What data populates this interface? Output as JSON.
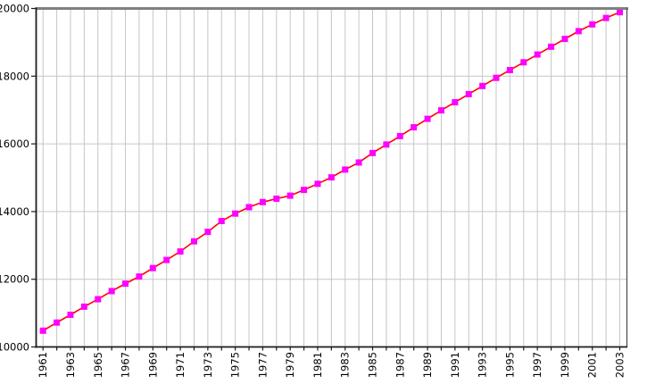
{
  "chart_data": {
    "type": "line",
    "title": "",
    "legend": "none",
    "grid": {
      "vertical": "every year",
      "horizontal": "every 2000 units"
    },
    "x": [
      1961,
      1962,
      1963,
      1964,
      1965,
      1966,
      1967,
      1968,
      1969,
      1970,
      1971,
      1972,
      1973,
      1974,
      1975,
      1976,
      1977,
      1978,
      1979,
      1980,
      1981,
      1982,
      1983,
      1984,
      1985,
      1986,
      1987,
      1988,
      1989,
      1990,
      1991,
      1992,
      1993,
      1994,
      1995,
      1996,
      1997,
      1998,
      1999,
      2000,
      2001,
      2002,
      2003
    ],
    "values": [
      10480,
      10720,
      10950,
      11190,
      11410,
      11650,
      11870,
      12080,
      12330,
      12570,
      12820,
      13120,
      13400,
      13720,
      13940,
      14130,
      14280,
      14380,
      14470,
      14640,
      14820,
      15010,
      15240,
      15450,
      15730,
      15980,
      16230,
      16490,
      16740,
      16990,
      17230,
      17470,
      17710,
      17950,
      18180,
      18410,
      18640,
      18870,
      19100,
      19330,
      19530,
      19720,
      19890
    ],
    "x_tick_labels": [
      "1961",
      "1963",
      "1965",
      "1967",
      "1969",
      "1971",
      "1973",
      "1975",
      "1977",
      "1979",
      "1981",
      "1983",
      "1985",
      "1987",
      "1989",
      "1991",
      "1993",
      "1995",
      "1997",
      "1999",
      "2001",
      "2003"
    ],
    "y_ticks": [
      10000,
      12000,
      14000,
      16000,
      18000,
      20000
    ],
    "y_tick_labels": [
      "10000",
      "12000",
      "14000",
      "16000",
      "18000",
      "20000"
    ],
    "ylim": [
      10000,
      20000
    ],
    "xlim": [
      1960.5,
      2003.5
    ],
    "marker": "square",
    "colors": {
      "line": "#ff0000",
      "marker": "#ff00ff",
      "grid": "#c6c6c6",
      "top_border": "#808080",
      "axis": "#1c1c1c",
      "right_border": "#4a4a4a",
      "text": "#000000",
      "background": "#ffffff"
    }
  }
}
